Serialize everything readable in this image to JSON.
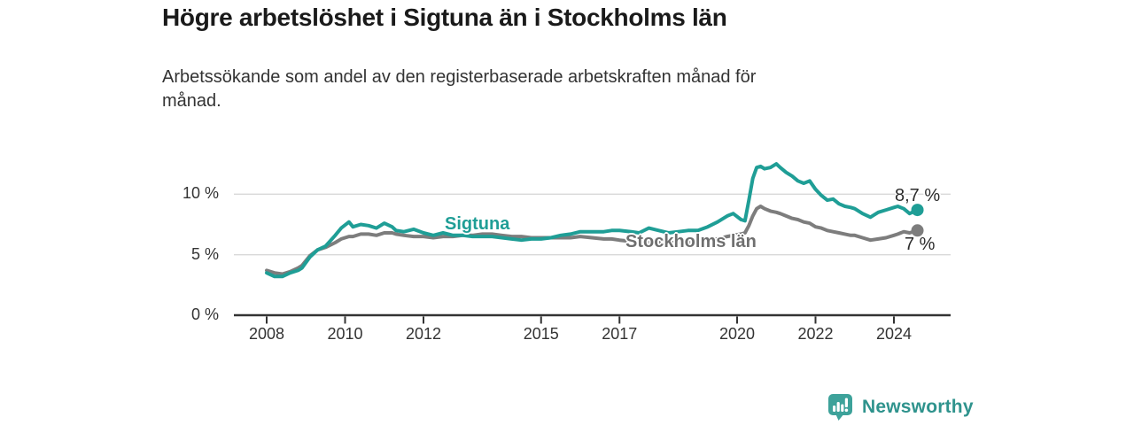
{
  "header": {
    "title": "Högre arbetslöshet i Sigtuna än i Stockholms län",
    "subtitle": "Arbetssökande som andel av den registerbaserade arbetskraften månad för\nmånad."
  },
  "footer": {
    "brand": "Newsworthy",
    "brand_color": "#2f938d",
    "logo_icon": "bar-chart-speech-bubble-icon",
    "logo_color": "#3da29a"
  },
  "chart_data": {
    "type": "line",
    "title": "Högre arbetslöshet i Sigtuna än i Stockholms län",
    "subtitle": "Arbetssökande som andel av den registerbaserade arbetskraften månad för månad.",
    "unit": "%",
    "grid": "horizontal",
    "x_range": [
      2008,
      2024.6
    ],
    "ylim": [
      0,
      13
    ],
    "x_ticks": [
      "2008",
      "2010",
      "2012",
      "2015",
      "2017",
      "2020",
      "2022",
      "2024"
    ],
    "x_tick_years": [
      2008,
      2010,
      2012,
      2015,
      2017,
      2020,
      2022,
      2024
    ],
    "y_ticks": [
      {
        "value": 0,
        "label": "0 %"
      },
      {
        "value": 5,
        "label": "5 %"
      },
      {
        "value": 10,
        "label": "10 %"
      }
    ],
    "axis_color": "#333333",
    "gridline_color": "#d9d9d9",
    "series": [
      {
        "name": "Stockholms län",
        "color": "#7d7d7d",
        "end_label": "7 %",
        "final_value": 7.0,
        "points": [
          [
            2008,
            3.7
          ],
          [
            2008.2,
            3.5
          ],
          [
            2008.4,
            3.4
          ],
          [
            2008.6,
            3.6
          ],
          [
            2008.8,
            3.9
          ],
          [
            2008.9,
            4.1
          ],
          [
            2009.1,
            4.9
          ],
          [
            2009.3,
            5.4
          ],
          [
            2009.5,
            5.6
          ],
          [
            2009.75,
            6.0
          ],
          [
            2009.9,
            6.3
          ],
          [
            2010.1,
            6.5
          ],
          [
            2010.2,
            6.5
          ],
          [
            2010.4,
            6.7
          ],
          [
            2010.6,
            6.7
          ],
          [
            2010.8,
            6.6
          ],
          [
            2011,
            6.8
          ],
          [
            2011.2,
            6.8
          ],
          [
            2011.3,
            6.7
          ],
          [
            2011.5,
            6.6
          ],
          [
            2011.75,
            6.5
          ],
          [
            2012,
            6.5
          ],
          [
            2012.25,
            6.4
          ],
          [
            2012.5,
            6.5
          ],
          [
            2012.75,
            6.5
          ],
          [
            2013,
            6.6
          ],
          [
            2013.25,
            6.6
          ],
          [
            2013.5,
            6.7
          ],
          [
            2013.75,
            6.7
          ],
          [
            2014,
            6.6
          ],
          [
            2014.25,
            6.5
          ],
          [
            2014.5,
            6.5
          ],
          [
            2014.75,
            6.4
          ],
          [
            2015,
            6.4
          ],
          [
            2015.25,
            6.4
          ],
          [
            2015.5,
            6.4
          ],
          [
            2015.75,
            6.4
          ],
          [
            2016,
            6.5
          ],
          [
            2016.3,
            6.4
          ],
          [
            2016.6,
            6.3
          ],
          [
            2016.8,
            6.3
          ],
          [
            2017,
            6.2
          ],
          [
            2017.3,
            6.1
          ],
          [
            2017.5,
            6.0
          ],
          [
            2017.75,
            6.0
          ],
          [
            2018,
            6.0
          ],
          [
            2018.25,
            6.0
          ],
          [
            2018.5,
            6.0
          ],
          [
            2018.75,
            6.0
          ],
          [
            2019,
            6.1
          ],
          [
            2019.25,
            6.2
          ],
          [
            2019.5,
            6.3
          ],
          [
            2019.75,
            6.5
          ],
          [
            2019.9,
            6.6
          ],
          [
            2020.1,
            6.7
          ],
          [
            2020.2,
            6.8
          ],
          [
            2020.3,
            7.4
          ],
          [
            2020.4,
            8.2
          ],
          [
            2020.5,
            8.8
          ],
          [
            2020.6,
            9.0
          ],
          [
            2020.7,
            8.8
          ],
          [
            2020.85,
            8.6
          ],
          [
            2021,
            8.5
          ],
          [
            2021.1,
            8.4
          ],
          [
            2021.25,
            8.2
          ],
          [
            2021.4,
            8.0
          ],
          [
            2021.55,
            7.9
          ],
          [
            2021.7,
            7.7
          ],
          [
            2021.85,
            7.6
          ],
          [
            2022,
            7.3
          ],
          [
            2022.15,
            7.2
          ],
          [
            2022.3,
            7.0
          ],
          [
            2022.45,
            6.9
          ],
          [
            2022.6,
            6.8
          ],
          [
            2022.75,
            6.7
          ],
          [
            2022.9,
            6.6
          ],
          [
            2023,
            6.6
          ],
          [
            2023.2,
            6.4
          ],
          [
            2023.4,
            6.2
          ],
          [
            2023.6,
            6.3
          ],
          [
            2023.8,
            6.4
          ],
          [
            2024,
            6.6
          ],
          [
            2024.1,
            6.7
          ],
          [
            2024.25,
            6.9
          ],
          [
            2024.4,
            6.8
          ],
          [
            2024.6,
            7.0
          ]
        ]
      },
      {
        "name": "Sigtuna",
        "color": "#1f9e96",
        "end_label": "8,7 %",
        "final_value": 8.7,
        "points": [
          [
            2008,
            3.5
          ],
          [
            2008.2,
            3.2
          ],
          [
            2008.4,
            3.2
          ],
          [
            2008.6,
            3.5
          ],
          [
            2008.8,
            3.7
          ],
          [
            2008.9,
            3.9
          ],
          [
            2009.1,
            4.8
          ],
          [
            2009.3,
            5.4
          ],
          [
            2009.5,
            5.7
          ],
          [
            2009.75,
            6.6
          ],
          [
            2009.9,
            7.2
          ],
          [
            2010.1,
            7.7
          ],
          [
            2010.2,
            7.3
          ],
          [
            2010.4,
            7.5
          ],
          [
            2010.6,
            7.4
          ],
          [
            2010.8,
            7.2
          ],
          [
            2011,
            7.6
          ],
          [
            2011.2,
            7.3
          ],
          [
            2011.3,
            7.0
          ],
          [
            2011.5,
            6.9
          ],
          [
            2011.75,
            7.1
          ],
          [
            2012,
            6.8
          ],
          [
            2012.25,
            6.6
          ],
          [
            2012.5,
            6.8
          ],
          [
            2012.75,
            6.6
          ],
          [
            2013,
            6.6
          ],
          [
            2013.25,
            6.5
          ],
          [
            2013.5,
            6.5
          ],
          [
            2013.75,
            6.5
          ],
          [
            2014,
            6.4
          ],
          [
            2014.25,
            6.3
          ],
          [
            2014.5,
            6.2
          ],
          [
            2014.75,
            6.3
          ],
          [
            2015,
            6.3
          ],
          [
            2015.25,
            6.4
          ],
          [
            2015.5,
            6.6
          ],
          [
            2015.75,
            6.7
          ],
          [
            2016,
            6.9
          ],
          [
            2016.3,
            6.9
          ],
          [
            2016.6,
            6.9
          ],
          [
            2016.8,
            7.0
          ],
          [
            2017,
            7.0
          ],
          [
            2017.3,
            6.9
          ],
          [
            2017.5,
            6.8
          ],
          [
            2017.75,
            7.2
          ],
          [
            2018,
            7.0
          ],
          [
            2018.25,
            6.8
          ],
          [
            2018.5,
            6.9
          ],
          [
            2018.75,
            7.0
          ],
          [
            2019,
            7.0
          ],
          [
            2019.25,
            7.3
          ],
          [
            2019.5,
            7.7
          ],
          [
            2019.75,
            8.2
          ],
          [
            2019.9,
            8.4
          ],
          [
            2020.1,
            7.9
          ],
          [
            2020.2,
            7.8
          ],
          [
            2020.3,
            9.5
          ],
          [
            2020.4,
            11.3
          ],
          [
            2020.5,
            12.2
          ],
          [
            2020.6,
            12.3
          ],
          [
            2020.7,
            12.1
          ],
          [
            2020.85,
            12.2
          ],
          [
            2021,
            12.5
          ],
          [
            2021.1,
            12.2
          ],
          [
            2021.25,
            11.8
          ],
          [
            2021.4,
            11.5
          ],
          [
            2021.55,
            11.1
          ],
          [
            2021.7,
            10.9
          ],
          [
            2021.85,
            11.1
          ],
          [
            2022,
            10.4
          ],
          [
            2022.15,
            9.9
          ],
          [
            2022.3,
            9.5
          ],
          [
            2022.45,
            9.6
          ],
          [
            2022.6,
            9.2
          ],
          [
            2022.75,
            9.0
          ],
          [
            2022.9,
            8.9
          ],
          [
            2023,
            8.8
          ],
          [
            2023.2,
            8.4
          ],
          [
            2023.4,
            8.1
          ],
          [
            2023.6,
            8.5
          ],
          [
            2023.8,
            8.7
          ],
          [
            2024,
            8.9
          ],
          [
            2024.1,
            9.0
          ],
          [
            2024.25,
            8.8
          ],
          [
            2024.4,
            8.4
          ],
          [
            2024.6,
            8.7
          ]
        ]
      }
    ]
  }
}
